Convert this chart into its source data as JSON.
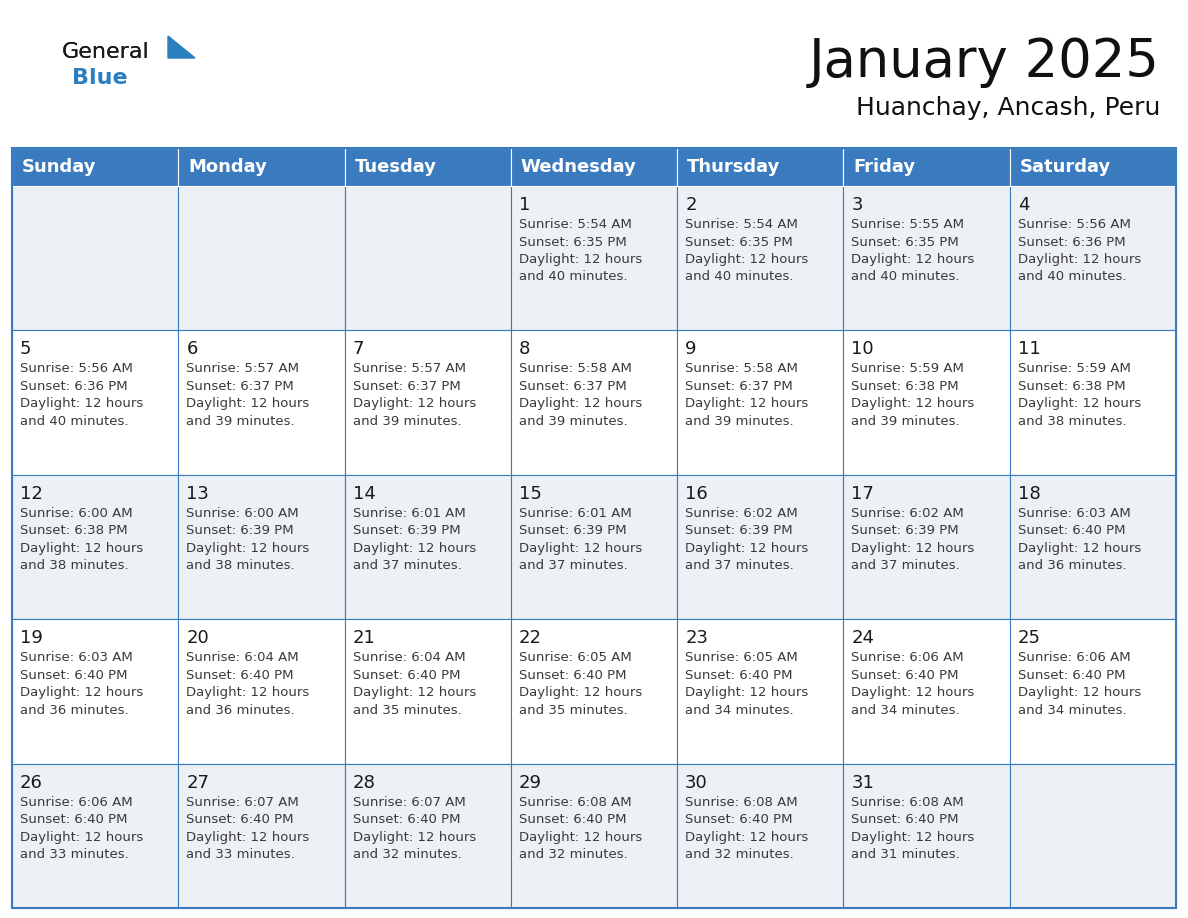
{
  "title": "January 2025",
  "subtitle": "Huanchay, Ancash, Peru",
  "header_color": "#3a7abf",
  "header_text_color": "#ffffff",
  "grid_line_color": "#3a7abf",
  "day_names": [
    "Sunday",
    "Monday",
    "Tuesday",
    "Wednesday",
    "Thursday",
    "Friday",
    "Saturday"
  ],
  "weeks": [
    [
      {
        "day": "",
        "sunrise": "",
        "sunset": "",
        "daylight": ""
      },
      {
        "day": "",
        "sunrise": "",
        "sunset": "",
        "daylight": ""
      },
      {
        "day": "",
        "sunrise": "",
        "sunset": "",
        "daylight": ""
      },
      {
        "day": "1",
        "sunrise": "5:54 AM",
        "sunset": "6:35 PM",
        "daylight": "12 hours and 40 minutes."
      },
      {
        "day": "2",
        "sunrise": "5:54 AM",
        "sunset": "6:35 PM",
        "daylight": "12 hours and 40 minutes."
      },
      {
        "day": "3",
        "sunrise": "5:55 AM",
        "sunset": "6:35 PM",
        "daylight": "12 hours and 40 minutes."
      },
      {
        "day": "4",
        "sunrise": "5:56 AM",
        "sunset": "6:36 PM",
        "daylight": "12 hours and 40 minutes."
      }
    ],
    [
      {
        "day": "5",
        "sunrise": "5:56 AM",
        "sunset": "6:36 PM",
        "daylight": "12 hours and 40 minutes."
      },
      {
        "day": "6",
        "sunrise": "5:57 AM",
        "sunset": "6:37 PM",
        "daylight": "12 hours and 39 minutes."
      },
      {
        "day": "7",
        "sunrise": "5:57 AM",
        "sunset": "6:37 PM",
        "daylight": "12 hours and 39 minutes."
      },
      {
        "day": "8",
        "sunrise": "5:58 AM",
        "sunset": "6:37 PM",
        "daylight": "12 hours and 39 minutes."
      },
      {
        "day": "9",
        "sunrise": "5:58 AM",
        "sunset": "6:37 PM",
        "daylight": "12 hours and 39 minutes."
      },
      {
        "day": "10",
        "sunrise": "5:59 AM",
        "sunset": "6:38 PM",
        "daylight": "12 hours and 39 minutes."
      },
      {
        "day": "11",
        "sunrise": "5:59 AM",
        "sunset": "6:38 PM",
        "daylight": "12 hours and 38 minutes."
      }
    ],
    [
      {
        "day": "12",
        "sunrise": "6:00 AM",
        "sunset": "6:38 PM",
        "daylight": "12 hours and 38 minutes."
      },
      {
        "day": "13",
        "sunrise": "6:00 AM",
        "sunset": "6:39 PM",
        "daylight": "12 hours and 38 minutes."
      },
      {
        "day": "14",
        "sunrise": "6:01 AM",
        "sunset": "6:39 PM",
        "daylight": "12 hours and 37 minutes."
      },
      {
        "day": "15",
        "sunrise": "6:01 AM",
        "sunset": "6:39 PM",
        "daylight": "12 hours and 37 minutes."
      },
      {
        "day": "16",
        "sunrise": "6:02 AM",
        "sunset": "6:39 PM",
        "daylight": "12 hours and 37 minutes."
      },
      {
        "day": "17",
        "sunrise": "6:02 AM",
        "sunset": "6:39 PM",
        "daylight": "12 hours and 37 minutes."
      },
      {
        "day": "18",
        "sunrise": "6:03 AM",
        "sunset": "6:40 PM",
        "daylight": "12 hours and 36 minutes."
      }
    ],
    [
      {
        "day": "19",
        "sunrise": "6:03 AM",
        "sunset": "6:40 PM",
        "daylight": "12 hours and 36 minutes."
      },
      {
        "day": "20",
        "sunrise": "6:04 AM",
        "sunset": "6:40 PM",
        "daylight": "12 hours and 36 minutes."
      },
      {
        "day": "21",
        "sunrise": "6:04 AM",
        "sunset": "6:40 PM",
        "daylight": "12 hours and 35 minutes."
      },
      {
        "day": "22",
        "sunrise": "6:05 AM",
        "sunset": "6:40 PM",
        "daylight": "12 hours and 35 minutes."
      },
      {
        "day": "23",
        "sunrise": "6:05 AM",
        "sunset": "6:40 PM",
        "daylight": "12 hours and 34 minutes."
      },
      {
        "day": "24",
        "sunrise": "6:06 AM",
        "sunset": "6:40 PM",
        "daylight": "12 hours and 34 minutes."
      },
      {
        "day": "25",
        "sunrise": "6:06 AM",
        "sunset": "6:40 PM",
        "daylight": "12 hours and 34 minutes."
      }
    ],
    [
      {
        "day": "26",
        "sunrise": "6:06 AM",
        "sunset": "6:40 PM",
        "daylight": "12 hours and 33 minutes."
      },
      {
        "day": "27",
        "sunrise": "6:07 AM",
        "sunset": "6:40 PM",
        "daylight": "12 hours and 33 minutes."
      },
      {
        "day": "28",
        "sunrise": "6:07 AM",
        "sunset": "6:40 PM",
        "daylight": "12 hours and 32 minutes."
      },
      {
        "day": "29",
        "sunrise": "6:08 AM",
        "sunset": "6:40 PM",
        "daylight": "12 hours and 32 minutes."
      },
      {
        "day": "30",
        "sunrise": "6:08 AM",
        "sunset": "6:40 PM",
        "daylight": "12 hours and 32 minutes."
      },
      {
        "day": "31",
        "sunrise": "6:08 AM",
        "sunset": "6:40 PM",
        "daylight": "12 hours and 31 minutes."
      },
      {
        "day": "",
        "sunrise": "",
        "sunset": "",
        "daylight": ""
      }
    ]
  ],
  "logo_color_general": "#1a1a1a",
  "logo_color_blue": "#2a7fc1",
  "logo_triangle_color": "#2a7fc1",
  "cell_bg_color": "#ffffff",
  "alt_row_color": "#edf0f5",
  "text_color": "#3a3a3a",
  "day_num_color": "#1a1a1a",
  "title_fontsize": 38,
  "subtitle_fontsize": 18,
  "header_fontsize": 13,
  "day_num_fontsize": 13,
  "cell_text_fontsize": 9.5
}
